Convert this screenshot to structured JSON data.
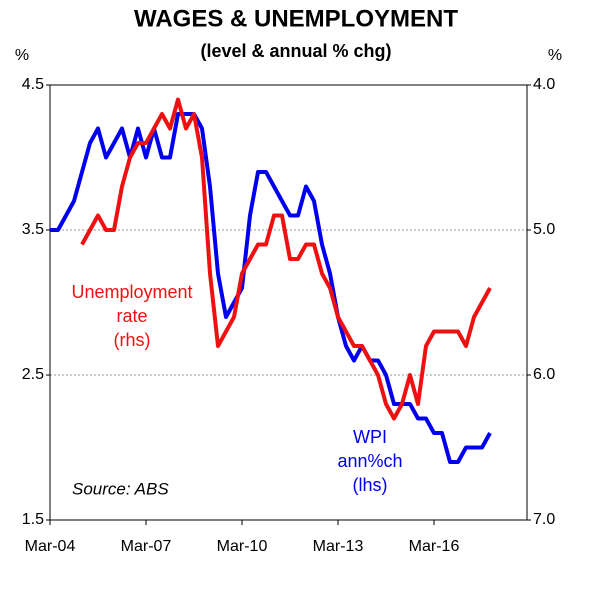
{
  "chart_data": {
    "type": "line",
    "title": "WAGES & UNEMPLOYMENT",
    "subtitle": "(level & annual % chg)",
    "y_unit": "%",
    "y2_unit": "%",
    "categories": [
      "Mar-04",
      null,
      null,
      null,
      null,
      null,
      null,
      null,
      null,
      null,
      null,
      null,
      "Mar-07",
      null,
      null,
      null,
      null,
      null,
      null,
      null,
      null,
      null,
      null,
      null,
      "Mar-10",
      null,
      null,
      null,
      null,
      null,
      null,
      null,
      null,
      null,
      null,
      null,
      "Mar-13",
      null,
      null,
      null,
      null,
      null,
      null,
      null,
      null,
      null,
      null,
      null,
      "Mar-16",
      null,
      null,
      null,
      null,
      null,
      null,
      null
    ],
    "series": [
      {
        "name": "WPI ann%ch (lhs)",
        "color": "#0000ee",
        "axis": "y",
        "values": [
          3.5,
          3.5,
          3.6,
          3.7,
          3.9,
          4.1,
          4.2,
          4.0,
          4.1,
          4.2,
          4.0,
          4.2,
          4.0,
          4.2,
          4.0,
          4.0,
          4.3,
          4.3,
          4.3,
          4.2,
          3.8,
          3.2,
          2.9,
          3.0,
          3.1,
          3.6,
          3.9,
          3.9,
          3.8,
          3.7,
          3.6,
          3.6,
          3.8,
          3.7,
          3.4,
          3.2,
          2.9,
          2.7,
          2.6,
          2.7,
          2.6,
          2.6,
          2.5,
          2.3,
          2.3,
          2.3,
          2.2,
          2.2,
          2.1,
          2.1,
          1.9,
          1.9,
          2.0,
          2.0,
          2.0,
          2.1
        ]
      },
      {
        "name": "Unemployment rate (rhs)",
        "color": "#ee1111",
        "axis": "y2",
        "values": [
          null,
          null,
          null,
          null,
          5.1,
          5.0,
          4.9,
          5.0,
          5.0,
          4.7,
          4.5,
          4.4,
          4.4,
          4.3,
          4.2,
          4.3,
          4.1,
          4.3,
          4.2,
          4.5,
          5.3,
          5.8,
          5.7,
          5.6,
          5.3,
          5.2,
          5.1,
          5.1,
          4.9,
          4.9,
          5.2,
          5.2,
          5.1,
          5.1,
          5.3,
          5.4,
          5.6,
          5.7,
          5.8,
          5.8,
          5.9,
          6.0,
          6.2,
          6.3,
          6.2,
          6.0,
          6.2,
          5.8,
          5.7,
          5.7,
          5.7,
          5.7,
          5.8,
          5.6,
          5.5,
          5.4
        ]
      }
    ],
    "ylim": [
      1.5,
      4.5
    ],
    "yticks": [
      1.5,
      2.5,
      3.5,
      4.5
    ],
    "y2lim": [
      4.0,
      7.0
    ],
    "y2_inverted": true,
    "y2ticks": [
      {
        "value": 4,
        "label": "4.0"
      },
      {
        "value": 5,
        "label": "5.0"
      },
      {
        "value": 6,
        "label": "6.0"
      },
      {
        "value": 7,
        "label": "7.0"
      }
    ],
    "grid": true,
    "annotations": {
      "unemployment": [
        "Unemployment",
        "rate",
        "(rhs)"
      ],
      "wpi": [
        "WPI",
        "ann%ch",
        "(lhs)"
      ],
      "source": "Source: ABS"
    }
  }
}
